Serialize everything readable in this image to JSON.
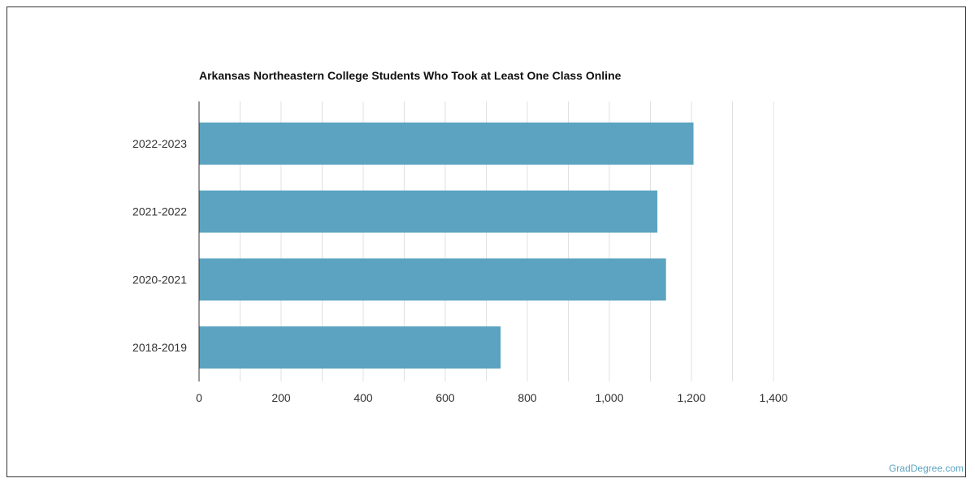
{
  "chart_data": {
    "type": "bar",
    "orientation": "horizontal",
    "title": "Arkansas Northeastern College Students Who Took at Least One Class Online",
    "xlabel": "",
    "ylabel": "",
    "categories": [
      "2022-2023",
      "2021-2022",
      "2020-2021",
      "2018-2019"
    ],
    "values": [
      1205,
      1117,
      1138,
      735
    ],
    "xlim": [
      0,
      1400
    ],
    "x_ticks": [
      0,
      200,
      400,
      600,
      800,
      1000,
      1200,
      1400
    ],
    "x_tick_labels": [
      "0",
      "200",
      "400",
      "600",
      "800",
      "1,000",
      "1,200",
      "1,400"
    ],
    "grid": true,
    "bar_color": "#5ba3c1",
    "grid_color": "#e0e0e0"
  },
  "watermark": "GradDegree.com"
}
